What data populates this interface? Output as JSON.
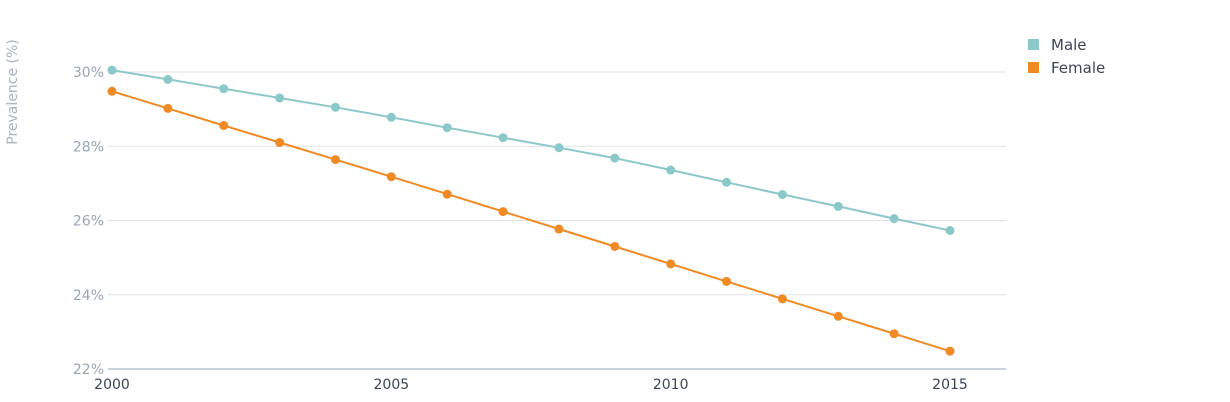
{
  "chart_data": {
    "type": "line",
    "ylabel": "Prevalence (%)",
    "xlabel": "",
    "ylim": [
      22,
      30
    ],
    "xlim": [
      2000,
      2015
    ],
    "yticks": [
      22,
      24,
      26,
      28,
      30
    ],
    "ytick_labels": [
      "22%",
      "24%",
      "26%",
      "28%",
      "30%"
    ],
    "xticks": [
      2000,
      2005,
      2010,
      2015
    ],
    "xtick_labels": [
      "2000",
      "2005",
      "2010",
      "2015"
    ],
    "grid": true,
    "legend_position": "top-right",
    "x": [
      2000,
      2001,
      2002,
      2003,
      2004,
      2005,
      2006,
      2007,
      2008,
      2009,
      2010,
      2011,
      2012,
      2013,
      2014,
      2015
    ],
    "series": [
      {
        "name": "Male",
        "color": "#8cc8c8",
        "values": [
          30.05,
          29.8,
          29.55,
          29.3,
          29.05,
          28.78,
          28.5,
          28.23,
          27.96,
          27.68,
          27.36,
          27.03,
          26.7,
          26.38,
          26.05,
          25.73
        ]
      },
      {
        "name": "Female",
        "color": "#f08a24",
        "values": [
          29.48,
          29.02,
          28.56,
          28.1,
          27.64,
          27.18,
          26.71,
          26.24,
          25.77,
          25.3,
          24.83,
          24.36,
          23.89,
          23.42,
          22.95,
          22.48
        ]
      }
    ]
  }
}
